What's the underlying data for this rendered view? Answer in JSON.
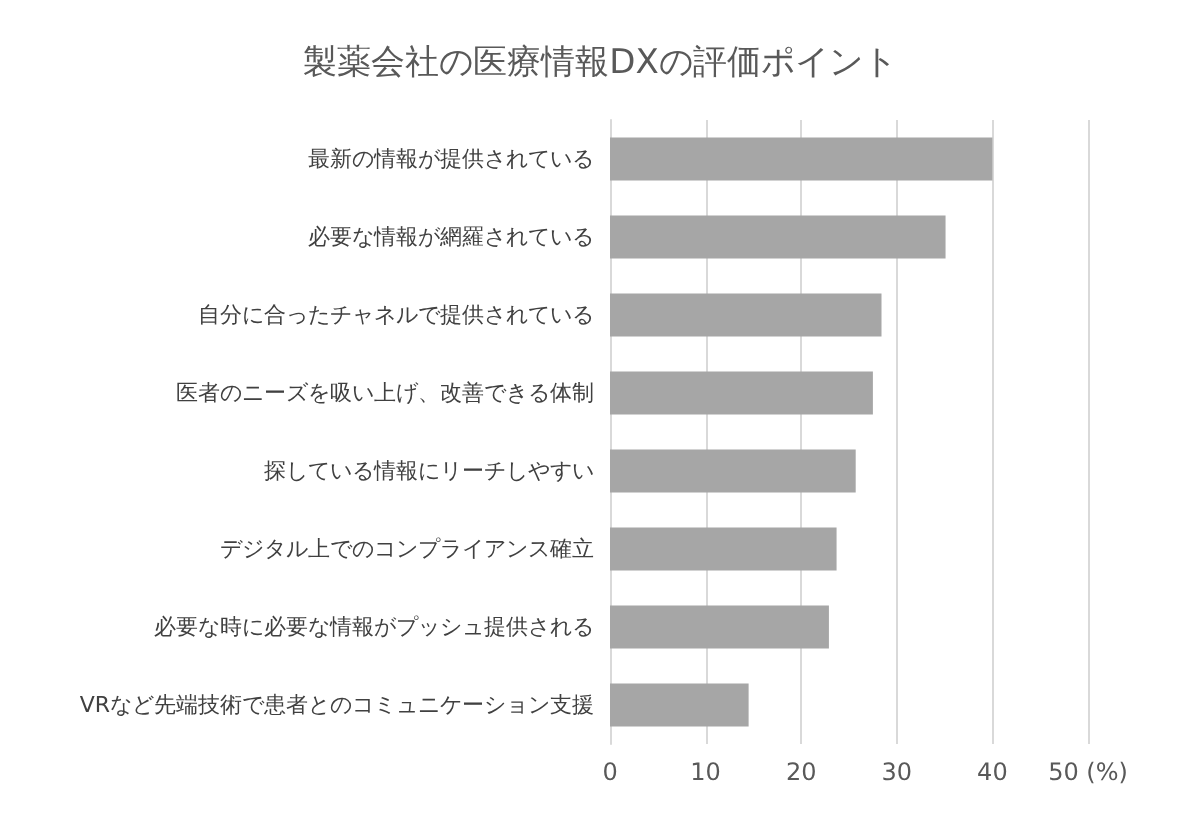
{
  "chart_data": {
    "type": "bar",
    "orientation": "horizontal",
    "title": "製薬会社の医療情報DXの評価ポイント",
    "categories": [
      "最新の情報が提供されている",
      "必要な情報が網羅されている",
      "自分に合ったチャネルで提供されている",
      "医者のニーズを吸い上げ、改善できる体制",
      "探している情報にリーチしやすい",
      "デジタル上でのコンプライアンス確立",
      "必要な時に必要な情報がプッシュ提供される",
      "VRなど先端技術で患者とのコミュニケーション支援"
    ],
    "values": [
      40,
      35.1,
      28.4,
      27.5,
      25.7,
      23.7,
      22.9,
      14.5
    ],
    "color": "#a6a6a6",
    "xlim": [
      0,
      50
    ],
    "xticks": [
      0,
      10,
      20,
      30,
      40,
      {
        "value": 50,
        "label": "50 (%)"
      }
    ],
    "grid": "x"
  }
}
